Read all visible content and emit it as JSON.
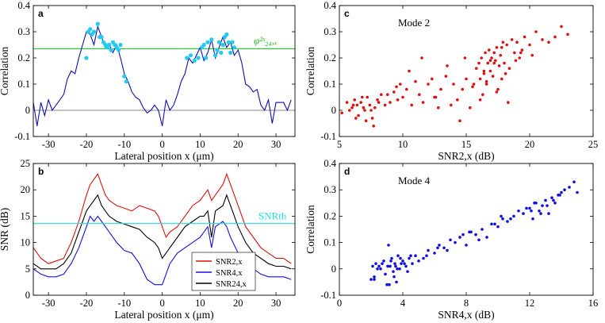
{
  "chart_data": [
    {
      "id": "a",
      "type": "line",
      "panel_label": "a",
      "xlabel": "Lateral position x (μm)",
      "ylabel": "Correlation",
      "xlim": [
        -34,
        35
      ],
      "ylim": [
        -0.1,
        0.4
      ],
      "xticks": [
        -30,
        -20,
        -10,
        0,
        10,
        20,
        30
      ],
      "yticks": [
        -0.1,
        0,
        0.1,
        0.2,
        0.3,
        0.4
      ],
      "ytick_labels": [
        "-0.1",
        "0",
        "0.1",
        "0.2",
        "0.3",
        "0.4"
      ],
      "threshold": {
        "y": 0.235,
        "color": "#22cc22",
        "label": "φ²ˢ₂₄,ₓ"
      },
      "zero_line_color": "#888888",
      "series": [
        {
          "color": "#1010b0",
          "x": [
            -34,
            -33,
            -32,
            -31,
            -30,
            -29,
            -28,
            -27,
            -26,
            -25,
            -24,
            -23,
            -22,
            -21,
            -20,
            -19,
            -18,
            -17,
            -16,
            -15,
            -14,
            -13,
            -12,
            -11,
            -10,
            -9,
            -8,
            -7,
            -6,
            -5,
            -4,
            -3,
            -2,
            -1,
            0,
            1,
            2,
            3,
            4,
            5,
            6,
            7,
            8,
            9,
            10,
            11,
            12,
            13,
            14,
            15,
            16,
            17,
            18,
            19,
            20,
            21,
            22,
            23,
            24,
            25,
            26,
            27,
            28,
            29,
            30,
            31,
            32,
            33,
            34
          ],
          "y": [
            0.03,
            -0.06,
            0.03,
            -0.02,
            0.04,
            0.0,
            0.02,
            0.04,
            0.06,
            0.12,
            0.15,
            0.14,
            0.2,
            0.25,
            0.3,
            0.29,
            0.25,
            0.32,
            0.28,
            0.24,
            0.25,
            0.22,
            0.25,
            0.2,
            0.14,
            0.11,
            0.07,
            0.05,
            0.04,
            0.01,
            -0.01,
            0.0,
            0.02,
            0.0,
            -0.06,
            0.04,
            0.0,
            0.02,
            0.06,
            0.11,
            0.14,
            0.2,
            0.18,
            0.21,
            0.24,
            0.19,
            0.22,
            0.27,
            0.2,
            0.24,
            0.28,
            0.24,
            0.26,
            0.21,
            0.23,
            0.18,
            0.1,
            0.09,
            0.07,
            0.08,
            0.02,
            0.0,
            0.04,
            -0.05,
            0.03,
            0.03,
            0.03,
            0.0,
            0.04
          ]
        }
      ],
      "markers": {
        "color": "#22ccee",
        "x": [
          -20,
          -19.5,
          -19,
          -18.5,
          -18,
          -17,
          -16.5,
          -16,
          -15.5,
          -15,
          -14.5,
          -14,
          -13.5,
          -13,
          -12.5,
          -12,
          -11.5,
          -11,
          -10,
          -9.5,
          6.5,
          7.5,
          8.5,
          9.5,
          10.5,
          11,
          11.5,
          12,
          13,
          14,
          14.5,
          15,
          15.5,
          16,
          16.5,
          17,
          17.5,
          18,
          18.5,
          19
        ],
        "y": [
          0.2,
          0.3,
          0.31,
          0.29,
          0.3,
          0.33,
          0.28,
          0.28,
          0.26,
          0.25,
          0.24,
          0.25,
          0.23,
          0.26,
          0.25,
          0.24,
          0.23,
          0.25,
          0.13,
          0.11,
          0.2,
          0.21,
          0.19,
          0.2,
          0.24,
          0.25,
          0.2,
          0.26,
          0.27,
          0.21,
          0.23,
          0.26,
          0.22,
          0.25,
          0.28,
          0.29,
          0.26,
          0.22,
          0.26,
          0.24
        ]
      }
    },
    {
      "id": "b",
      "type": "line",
      "panel_label": "b",
      "xlabel": "Lateral position x (μm)",
      "ylabel": "SNR (dB)",
      "xlim": [
        -34,
        35
      ],
      "ylim": [
        0,
        25
      ],
      "xticks": [
        -30,
        -20,
        -10,
        0,
        10,
        20,
        30
      ],
      "yticks": [
        0,
        5,
        10,
        15,
        20,
        25
      ],
      "threshold": {
        "y": 13.6,
        "color": "#22dddd",
        "label": "SNRth"
      },
      "legend": {
        "placement": "lower-right",
        "entries": [
          {
            "label": "SNR2,x",
            "color": "#dd1010"
          },
          {
            "label": "SNR4,x",
            "color": "#1010dd"
          },
          {
            "label": "SNR24,x",
            "color": "#000000"
          }
        ]
      },
      "series": [
        {
          "name": "SNR2,x",
          "color": "#dd1010",
          "x": [
            -34,
            -32,
            -30,
            -28,
            -26,
            -24,
            -22,
            -20,
            -19,
            -18,
            -17,
            -16,
            -15,
            -14,
            -12,
            -10,
            -8,
            -6,
            -4,
            -2,
            -1,
            0,
            1,
            2,
            4,
            6,
            8,
            10,
            11,
            12,
            13,
            14,
            16,
            17,
            18,
            20,
            22,
            24,
            26,
            28,
            30,
            32,
            34
          ],
          "y": [
            9,
            7,
            6,
            6.5,
            7,
            10,
            14,
            19,
            21,
            22,
            23,
            21,
            19,
            18,
            17,
            16.5,
            16,
            17,
            16.5,
            16,
            15,
            13,
            11,
            12,
            13,
            15,
            17,
            18,
            19,
            20,
            18,
            19,
            21,
            23,
            21,
            17,
            13,
            11,
            9,
            8,
            7,
            7,
            6
          ]
        },
        {
          "name": "SNR4,x",
          "color": "#1010dd",
          "x": [
            -34,
            -32,
            -30,
            -28,
            -26,
            -24,
            -22,
            -20,
            -19,
            -18,
            -17,
            -16,
            -15,
            -14,
            -12,
            -10,
            -8,
            -6,
            -4,
            -2,
            -1,
            0,
            1,
            2,
            4,
            6,
            8,
            10,
            11,
            12,
            13,
            14,
            16,
            17,
            18,
            20,
            22,
            24,
            26,
            28,
            30,
            32,
            34
          ],
          "y": [
            5,
            4,
            3.5,
            3.5,
            4,
            6,
            9,
            13,
            15,
            14,
            15,
            14,
            13,
            12,
            10,
            8.5,
            8,
            6,
            3,
            2,
            2,
            2,
            4,
            6,
            8,
            9,
            10,
            11,
            12,
            13,
            9,
            13,
            14,
            13,
            11,
            8,
            6,
            5,
            4,
            3.5,
            3.5,
            3.5,
            3
          ]
        },
        {
          "name": "SNR24,x",
          "color": "#000000",
          "x": [
            -34,
            -32,
            -30,
            -28,
            -26,
            -24,
            -22,
            -20,
            -19,
            -18,
            -17,
            -16,
            -15,
            -14,
            -12,
            -10,
            -8,
            -6,
            -4,
            -2,
            -1,
            0,
            1,
            2,
            4,
            6,
            8,
            10,
            11,
            12,
            13,
            14,
            16,
            17,
            18,
            20,
            22,
            24,
            26,
            28,
            30,
            32,
            34
          ],
          "y": [
            6,
            5,
            5,
            5,
            6,
            8,
            12,
            16,
            17,
            18,
            19,
            17,
            16,
            15,
            14,
            13.5,
            13,
            12.5,
            11,
            10,
            9,
            7,
            8,
            9,
            11,
            13,
            14,
            15,
            15,
            16,
            11,
            16,
            17,
            19,
            17,
            13,
            10,
            8,
            7,
            6,
            5.5,
            5.5,
            5
          ]
        }
      ]
    },
    {
      "id": "c",
      "type": "scatter",
      "panel_label": "c",
      "annotation": "Mode 2",
      "xlabel": "SNR2,x (dB)",
      "ylabel": "Correlation",
      "xlim": [
        5,
        25
      ],
      "ylim": [
        -0.1,
        0.4
      ],
      "xticks": [
        5,
        10,
        15,
        20,
        25
      ],
      "yticks": [
        -0.1,
        0,
        0.1,
        0.2,
        0.3,
        0.4
      ],
      "ytick_labels": [
        "-0.1",
        "0",
        "0.1",
        "0.2",
        "0.3",
        "0.4"
      ],
      "series": [
        {
          "color": "#e01010",
          "x": [
            5.2,
            5.6,
            5.8,
            6.0,
            6.2,
            6.4,
            6.5,
            6.7,
            6.9,
            7.0,
            7.2,
            7.4,
            7.6,
            7.8,
            8.0,
            8.3,
            8.6,
            9.0,
            9.3,
            9.6,
            10.0,
            10.3,
            10.7,
            11.0,
            11.3,
            11.6,
            12.0,
            12.3,
            12.6,
            13.0,
            13.4,
            13.8,
            14.0,
            14.3,
            14.7,
            15.0,
            15.3,
            15.6,
            15.8,
            16.0,
            16.1,
            16.2,
            16.3,
            16.4,
            16.5,
            16.6,
            16.7,
            16.8,
            16.9,
            17.0,
            17.1,
            17.2,
            17.3,
            17.4,
            17.5,
            17.6,
            17.7,
            17.8,
            17.9,
            18.0,
            18.2,
            18.4,
            18.6,
            18.8,
            19.0,
            19.2,
            19.4,
            19.6,
            20.0,
            20.5,
            21.0,
            21.5,
            22.0,
            22.5,
            23.0,
            6.3,
            6.8,
            7.1,
            7.5,
            8.1,
            8.8,
            9.5,
            10.5,
            11.5,
            12.5,
            13.5,
            14.5,
            15.5,
            16.1,
            16.4,
            16.9,
            17.4,
            17.8,
            18.3,
            18.9,
            19.3,
            20.2,
            6.1,
            7.7,
            9.8,
            12.8,
            14.9,
            16.6,
            17.2,
            18.1
          ],
          "y": [
            -0.01,
            0.03,
            0.0,
            0.01,
            0.04,
            0.02,
            -0.02,
            0.03,
            0.01,
            0.0,
            0.05,
            0.02,
            -0.03,
            0.01,
            0.04,
            0.06,
            0.02,
            0.03,
            0.07,
            0.04,
            0.05,
            0.08,
            0.02,
            0.11,
            0.06,
            0.03,
            0.1,
            0.12,
            0.05,
            0.08,
            0.13,
            0.02,
            0.1,
            0.04,
            0.08,
            0.12,
            0.01,
            0.1,
            0.16,
            0.18,
            0.12,
            0.2,
            0.06,
            0.14,
            0.22,
            0.1,
            0.18,
            0.23,
            0.15,
            0.2,
            0.13,
            0.22,
            0.19,
            0.24,
            0.08,
            0.17,
            0.21,
            0.12,
            0.26,
            0.18,
            0.25,
            0.16,
            0.27,
            0.22,
            0.26,
            0.2,
            0.23,
            0.28,
            0.25,
            0.3,
            0.27,
            0.26,
            0.28,
            0.32,
            0.29,
            -0.03,
            0.05,
            -0.04,
            0.0,
            0.03,
            0.06,
            0.09,
            0.15,
            0.2,
            0.05,
            0.17,
            -0.04,
            0.09,
            0.04,
            0.15,
            0.19,
            0.07,
            0.24,
            0.03,
            0.19,
            0.22,
            0.21,
            0.02,
            -0.06,
            0.1,
            0.01,
            0.2,
            0.11,
            0.18,
            0.14
          ]
        }
      ]
    },
    {
      "id": "d",
      "type": "scatter",
      "panel_label": "d",
      "annotation": "Mode 4",
      "xlabel": "SNR4,x (dB)",
      "ylabel": "Correlation",
      "xlim": [
        0,
        16
      ],
      "ylim": [
        -0.1,
        0.4
      ],
      "xticks": [
        0,
        4,
        8,
        12,
        16
      ],
      "yticks": [
        -0.1,
        0,
        0.1,
        0.2,
        0.3,
        0.4
      ],
      "ytick_labels": [
        "-0.1",
        "0",
        "0.1",
        "0.2",
        "0.3",
        "0.4"
      ],
      "series": [
        {
          "color": "#1010e0",
          "x": [
            2.0,
            2.1,
            2.2,
            2.3,
            2.5,
            2.6,
            2.8,
            3.0,
            3.1,
            3.2,
            3.3,
            3.4,
            3.5,
            3.6,
            3.7,
            3.8,
            3.9,
            4.0,
            4.2,
            4.4,
            4.6,
            4.8,
            5.0,
            5.3,
            5.6,
            6.0,
            6.3,
            6.6,
            7.0,
            7.3,
            7.6,
            8.0,
            8.3,
            8.6,
            9.0,
            9.3,
            9.6,
            10.0,
            10.3,
            10.6,
            11.0,
            11.3,
            11.6,
            12.0,
            12.2,
            12.4,
            12.6,
            12.8,
            13.0,
            13.2,
            13.4,
            13.6,
            13.8,
            14.0,
            14.2,
            14.5,
            14.8,
            15.0,
            2.4,
            2.7,
            2.9,
            3.05,
            3.25,
            3.45,
            3.65,
            3.85,
            4.1,
            4.3,
            5.5,
            6.8,
            7.8,
            8.8,
            9.8,
            10.8,
            11.8,
            12.3,
            12.7,
            13.1,
            13.5,
            13.9,
            2.2,
            3.15,
            3.55,
            4.5,
            6.2,
            8.2,
            10.2,
            12.1
          ],
          "y": [
            -0.04,
            0.01,
            -0.03,
            0.02,
            0.01,
            0.0,
            0.03,
            -0.06,
            0.09,
            0.01,
            0.04,
            -0.01,
            0.02,
            -0.05,
            0.05,
            0.0,
            0.02,
            0.03,
            0.01,
            0.04,
            0.02,
            0.05,
            0.03,
            0.04,
            0.07,
            0.06,
            0.09,
            0.08,
            0.11,
            0.1,
            0.12,
            0.09,
            0.14,
            0.13,
            0.15,
            0.12,
            0.17,
            0.16,
            0.19,
            0.18,
            0.2,
            0.22,
            0.21,
            0.23,
            0.19,
            0.25,
            0.22,
            0.24,
            0.26,
            0.21,
            0.27,
            0.25,
            0.28,
            0.29,
            0.3,
            0.31,
            0.33,
            0.29,
            0.0,
            0.02,
            -0.02,
            0.01,
            0.03,
            -0.03,
            0.0,
            0.04,
            0.02,
            -0.01,
            0.05,
            0.07,
            0.13,
            0.11,
            0.17,
            0.19,
            0.23,
            0.25,
            0.21,
            0.24,
            0.26,
            0.28,
            -0.04,
            -0.06,
            0.01,
            0.05,
            0.08,
            0.14,
            0.2,
            0.22
          ]
        }
      ]
    }
  ]
}
